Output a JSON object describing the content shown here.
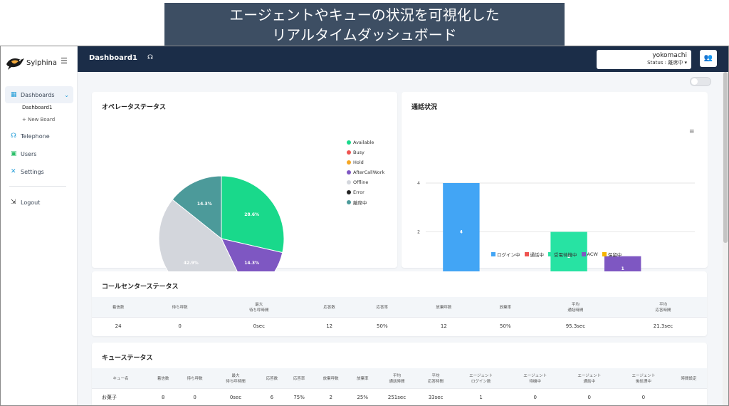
{
  "banner": {
    "line1": "エージェントやキューの状況を可視化した",
    "line2": "リアルタイムダッシュボード"
  },
  "sidebar": {
    "logo_text": "Sylphina",
    "dashboards_label": "Dashboards",
    "dashboard1_label": "Dashboard1",
    "new_board_label": "+ New Board",
    "telephone_label": "Telephone",
    "users_label": "Users",
    "settings_label": "Settings",
    "logout_label": "Logout"
  },
  "topbar": {
    "title": "Dashboard1",
    "user_name": "yokomachi",
    "user_status": "Status : 離席中 ▾"
  },
  "operator_card": {
    "title": "オペレータステータス"
  },
  "call_card": {
    "title": "通話状況"
  },
  "center_card": {
    "title": "コールセンターステータス",
    "headers": [
      "着信数",
      "待ち呼数",
      "最大\n待ち呼時間",
      "応答数",
      "応答率",
      "放棄呼数",
      "放棄率",
      "平均\n通話時間",
      "平均\n応答時間"
    ],
    "row": [
      "24",
      "0",
      "0sec",
      "12",
      "50%",
      "12",
      "50%",
      "95.3sec",
      "21.3sec"
    ]
  },
  "queue_card": {
    "title": "キューステータス",
    "headers": [
      "キュー名",
      "着信数",
      "待ち呼数",
      "最大\n待ち呼時間",
      "応答数",
      "応答率",
      "放棄呼数",
      "放棄率",
      "平均\n通話時間",
      "平均\n応答時間",
      "エージェント\nログイン数",
      "エージェント\n待機中",
      "エージェント\n通話中",
      "エージェント\n後処理中",
      "時間設定"
    ],
    "row": [
      "お菓子",
      "8",
      "0",
      "0sec",
      "6",
      "75%",
      "2",
      "25%",
      "251sec",
      "33sec",
      "1",
      "0",
      "0",
      "0",
      ""
    ]
  },
  "chart_data": [
    {
      "type": "pie",
      "title": "オペレータステータス",
      "labels": [
        "Available",
        "Busy",
        "Hold",
        "AfterCallWork",
        "Offline",
        "Error",
        "離席中"
      ],
      "values": [
        28.6,
        0,
        0,
        14.3,
        42.9,
        0,
        14.3
      ],
      "slice_labels": [
        "28.6%",
        "",
        "",
        "14.3%",
        "42.9%",
        "",
        "14.3%"
      ],
      "colors": [
        "#19d98b",
        "#ef5350",
        "#f5a623",
        "#7e57c2",
        "#d3d6dc",
        "#222222",
        "#4c9a9a"
      ],
      "legend": "right"
    },
    {
      "type": "bar",
      "title": "通話状況",
      "categories": [
        "ログイン中",
        "通話中",
        "受電待機中",
        "ACW",
        "保留中"
      ],
      "series": [
        {
          "name": "ログイン中",
          "values": [
            4,
            0,
            0,
            0,
            0
          ]
        },
        {
          "name": "通話中",
          "values": [
            0,
            0,
            0,
            0,
            0
          ]
        },
        {
          "name": "受電待機中",
          "values": [
            0,
            0,
            2,
            0,
            0
          ]
        },
        {
          "name": "ACW",
          "values": [
            0,
            0,
            0,
            1,
            0
          ]
        },
        {
          "name": "保留中",
          "values": [
            0,
            0,
            0,
            0,
            0
          ]
        }
      ],
      "bar_labels": [
        "4",
        "",
        "2",
        "1",
        ""
      ],
      "colors": [
        "#42a5f5",
        "#ef5350",
        "#27e3a3",
        "#7e57c2",
        "#f5b400"
      ],
      "yticks": [
        "0",
        "2",
        "4"
      ],
      "ylim": [
        0,
        4
      ],
      "grid": true,
      "legend": "bottom"
    }
  ]
}
